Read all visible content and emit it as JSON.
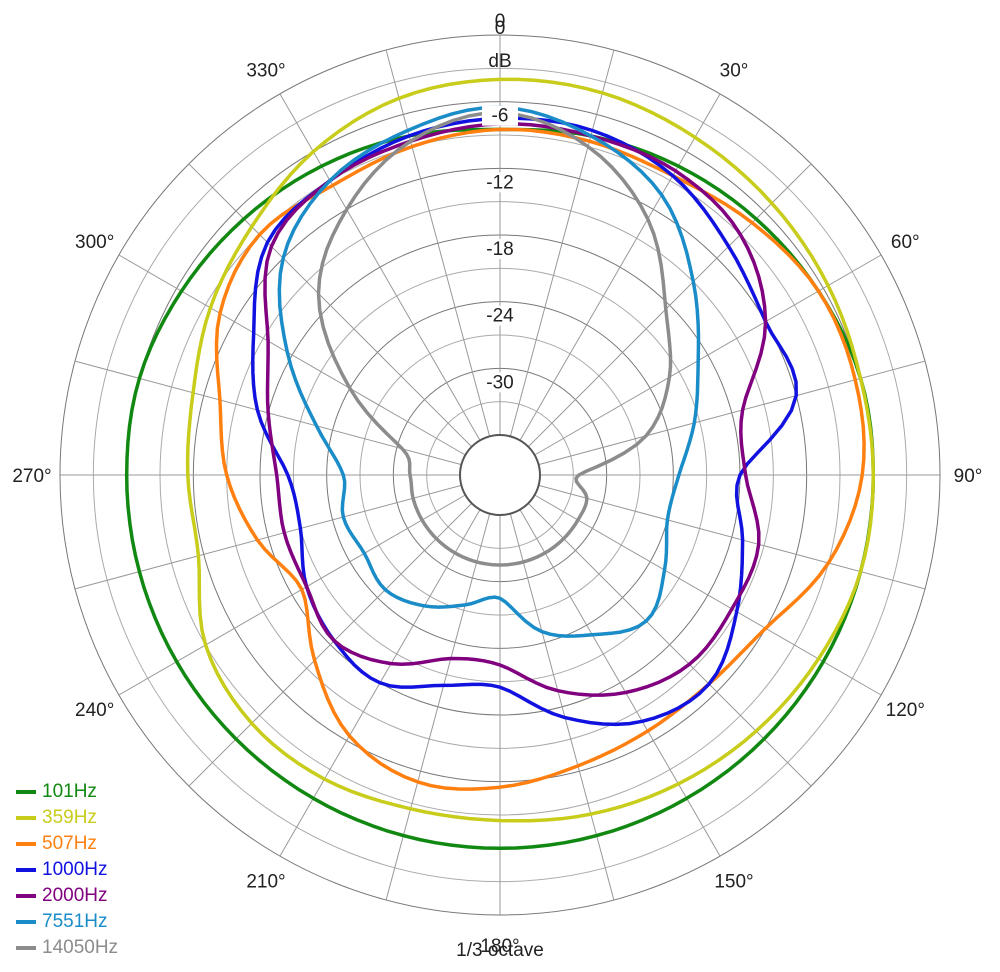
{
  "chart_data": {
    "type": "polar-line",
    "r_label": "dB",
    "r_min": -36,
    "r_max": 0,
    "r_ticks": [
      0,
      -6,
      -12,
      -18,
      -24,
      -30
    ],
    "r_tick_labels": [
      "0",
      "-6",
      "-12",
      "-18",
      "-24",
      "-30"
    ],
    "angle_ticks": [
      0,
      30,
      60,
      90,
      120,
      150,
      180,
      210,
      240,
      270,
      300,
      330
    ],
    "angle_labels": [
      "0",
      "30°",
      "60°",
      "90°",
      "120°",
      "150°",
      "180°",
      "210°",
      "240°",
      "270°",
      "300°",
      "330°"
    ],
    "angular_grid_step_deg": 15,
    "clockwise": true,
    "zero_at": "top",
    "note": "1/3 octave",
    "legend_position": "bottom-left",
    "angles": [
      0,
      15,
      30,
      45,
      60,
      75,
      90,
      105,
      120,
      135,
      150,
      165,
      180,
      195,
      210,
      225,
      240,
      255,
      270,
      285,
      300,
      315,
      330,
      345
    ],
    "series": [
      {
        "name": "101Hz",
        "color": "#118811",
        "values": [
          -8.5,
          -8,
          -7.5,
          -7,
          -6.5,
          -6,
          -6,
          -6,
          -6,
          -6,
          -6,
          -6,
          -6,
          -6,
          -6,
          -6,
          -6,
          -6,
          -6,
          -6,
          -6.5,
          -7,
          -7.5,
          -8
        ]
      },
      {
        "name": "359Hz",
        "color": "#c8cc1a",
        "values": [
          -4,
          -4,
          -4.5,
          -5,
          -5.5,
          -6,
          -6,
          -6,
          -6.5,
          -7,
          -7.5,
          -8,
          -8.5,
          -8.5,
          -8,
          -8,
          -9,
          -11.5,
          -11.5,
          -11,
          -9.5,
          -8,
          -6,
          -4.5
        ]
      },
      {
        "name": "507Hz",
        "color": "#ff8010",
        "values": [
          -8.5,
          -8.5,
          -8.5,
          -7.5,
          -6.5,
          -6.5,
          -7,
          -9,
          -12,
          -13,
          -13,
          -12.5,
          -11.5,
          -11,
          -12.5,
          -16,
          -19,
          -17,
          -15,
          -13.5,
          -10.5,
          -9,
          -9.5,
          -9
        ]
      },
      {
        "name": "1000Hz",
        "color": "#1212e0",
        "values": [
          -7.5,
          -7.5,
          -8.5,
          -10.5,
          -12,
          -12,
          -18,
          -17,
          -15,
          -13,
          -14,
          -17,
          -20.5,
          -20,
          -18,
          -18.5,
          -19.5,
          -21,
          -20.5,
          -17,
          -14,
          -10,
          -9,
          -8
        ]
      },
      {
        "name": "2000Hz",
        "color": "#800080",
        "values": [
          -8,
          -8,
          -8,
          -9,
          -12,
          -17,
          -17.5,
          -15.5,
          -15.5,
          -15.5,
          -17,
          -19.5,
          -22.5,
          -22.5,
          -20,
          -18.5,
          -19.5,
          -19.5,
          -19.5,
          -18,
          -15.5,
          -10.5,
          -9,
          -8.5
        ]
      },
      {
        "name": "7551Hz",
        "color": "#1a8cc8",
        "values": [
          -6.5,
          -8,
          -10.5,
          -15,
          -19,
          -21.5,
          -23.5,
          -24,
          -22.5,
          -21,
          -23,
          -25,
          -28.5,
          -27.5,
          -26,
          -25,
          -25.5,
          -25,
          -25.5,
          -22.5,
          -17.5,
          -12,
          -9,
          -7.5
        ]
      },
      {
        "name": "14050Hz",
        "color": "#8c8c8c",
        "values": [
          -7,
          -9,
          -13,
          -18.5,
          -22,
          -26,
          -32.5,
          -31.5,
          -31.5,
          -31.5,
          -31.5,
          -31.5,
          -31.5,
          -31.5,
          -31.5,
          -31.5,
          -31.5,
          -31.5,
          -31.5,
          -30.5,
          -24,
          -16.5,
          -12,
          -8.5
        ]
      }
    ]
  }
}
